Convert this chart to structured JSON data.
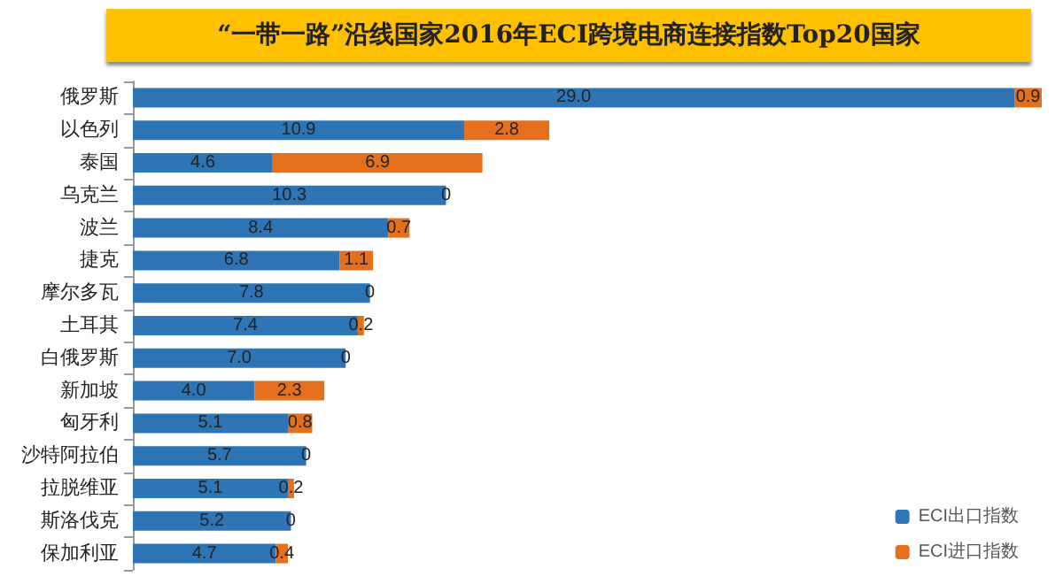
{
  "chart_data": {
    "type": "bar",
    "orientation": "horizontal",
    "stacked": true,
    "title": "“一带一路”沿线国家2016年ECI跨境电商连接指数Top20国家",
    "categories": [
      "俄罗斯",
      "以色列",
      "泰国",
      "乌克兰",
      "波兰",
      "捷克",
      "摩尔多瓦",
      "土耳其",
      "白俄罗斯",
      "新加坡",
      "匈牙利",
      "沙特阿拉伯",
      "拉脱维亚",
      "斯洛伐克",
      "保加利亚"
    ],
    "series": [
      {
        "name": "ECI出口指数",
        "color": "#2e75b6",
        "values": [
          29.0,
          10.9,
          4.6,
          10.3,
          8.4,
          6.8,
          7.8,
          7.4,
          7.0,
          4.0,
          5.1,
          5.7,
          5.1,
          5.2,
          4.7
        ],
        "value_labels": [
          "29.0",
          "10.9",
          "4.6",
          "10.3",
          "8.4",
          "6.8",
          "7.8",
          "7.4",
          "7.0",
          "4.0",
          "5.1",
          "5.7",
          "5.1",
          "5.2",
          "4.7"
        ]
      },
      {
        "name": "ECI进口指数",
        "color": "#e4701e",
        "values": [
          0.9,
          2.8,
          6.9,
          0,
          0.7,
          1.1,
          0,
          0.2,
          0,
          2.3,
          0.8,
          0,
          0.2,
          0,
          0.4
        ],
        "value_labels": [
          "0.9",
          "2.8",
          "6.9",
          "0",
          "0.7",
          "1.1",
          "0",
          "0.2",
          "0",
          "2.3",
          "0.8",
          "0",
          "0.2",
          "0",
          "0.4"
        ]
      }
    ],
    "legend": "bottom right",
    "tick_labels": "y"
  }
}
